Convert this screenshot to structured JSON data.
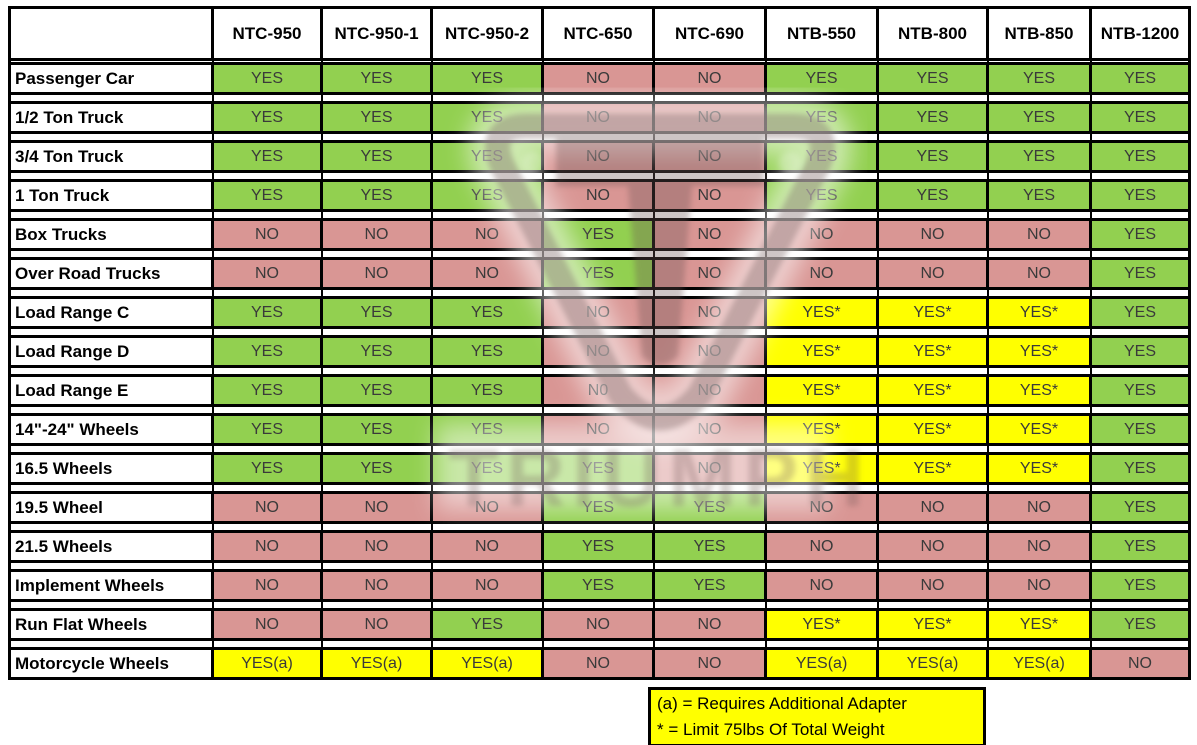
{
  "chart_data": {
    "type": "table",
    "title": "Tire changer model compatibility chart",
    "categories": [
      "NTC-950",
      "NTC-950-1",
      "NTC-950-2",
      "NTC-650",
      "NTC-690",
      "NTB-550",
      "NTB-800",
      "NTB-850",
      "NTB-1200"
    ],
    "rows": [
      {
        "label": "Passenger Car",
        "values": [
          "YES",
          "YES",
          "YES",
          "NO",
          "NO",
          "YES",
          "YES",
          "YES",
          "YES"
        ]
      },
      {
        "label": "1/2 Ton Truck",
        "values": [
          "YES",
          "YES",
          "YES",
          "NO",
          "NO",
          "YES",
          "YES",
          "YES",
          "YES"
        ]
      },
      {
        "label": "3/4 Ton Truck",
        "values": [
          "YES",
          "YES",
          "YES",
          "NO",
          "NO",
          "YES",
          "YES",
          "YES",
          "YES"
        ]
      },
      {
        "label": "1 Ton Truck",
        "values": [
          "YES",
          "YES",
          "YES",
          "NO",
          "NO",
          "YES",
          "YES",
          "YES",
          "YES"
        ]
      },
      {
        "label": "Box Trucks",
        "values": [
          "NO",
          "NO",
          "NO",
          "YES",
          "NO",
          "NO",
          "NO",
          "NO",
          "YES"
        ]
      },
      {
        "label": "Over Road Trucks",
        "values": [
          "NO",
          "NO",
          "NO",
          "YES",
          "NO",
          "NO",
          "NO",
          "NO",
          "YES"
        ]
      },
      {
        "label": "Load Range C",
        "values": [
          "YES",
          "YES",
          "YES",
          "NO",
          "NO",
          "YES*",
          "YES*",
          "YES*",
          "YES"
        ]
      },
      {
        "label": "Load Range D",
        "values": [
          "YES",
          "YES",
          "YES",
          "NO",
          "NO",
          "YES*",
          "YES*",
          "YES*",
          "YES"
        ]
      },
      {
        "label": "Load Range E",
        "values": [
          "YES",
          "YES",
          "YES",
          "N0",
          "NO",
          "YES*",
          "YES*",
          "YES*",
          "YES"
        ]
      },
      {
        "label": "14\"-24\" Wheels",
        "values": [
          "YES",
          "YES",
          "YES",
          "NO",
          "NO",
          "YES*",
          "YES*",
          "YES*",
          "YES"
        ]
      },
      {
        "label": "16.5 Wheels",
        "values": [
          "YES",
          "YES",
          "YES",
          "YES",
          "NO",
          "YES*",
          "YES*",
          "YES*",
          "YES"
        ]
      },
      {
        "label": "19.5 Wheel",
        "values": [
          "NO",
          "NO",
          "NO",
          "YES",
          "YES",
          "NO",
          "NO",
          "NO",
          "YES"
        ]
      },
      {
        "label": "21.5 Wheels",
        "values": [
          "NO",
          "NO",
          "NO",
          "YES",
          "YES",
          "NO",
          "NO",
          "NO",
          "YES"
        ]
      },
      {
        "label": "Implement Wheels",
        "values": [
          "NO",
          "NO",
          "NO",
          "YES",
          "YES",
          "NO",
          "NO",
          "NO",
          "YES"
        ]
      },
      {
        "label": "Run Flat Wheels",
        "values": [
          "NO",
          "NO",
          "YES",
          "NO",
          "NO",
          "YES*",
          "YES*",
          "YES*",
          "YES"
        ]
      },
      {
        "label": "Motorcycle Wheels",
        "values": [
          "YES(a)",
          "YES(a)",
          "YES(a)",
          "NO",
          "NO",
          "YES(a)",
          "YES(a)",
          "YES(a)",
          "NO"
        ]
      }
    ],
    "legend_position": "bottom-right",
    "grid": true
  },
  "legend": {
    "line1": "(a) = Requires Additional Adapter",
    "line2": "* = Limit 75lbs Of Total Weight"
  },
  "watermark": {
    "text": "TRIUMPH"
  },
  "colors": {
    "yes_green": "#92D050",
    "no_red": "#D99694",
    "conditional_yellow": "#FFFF00",
    "legend_background": "#FFFF00",
    "border_black": "#000000",
    "watermark_tint": "#6B5252"
  }
}
